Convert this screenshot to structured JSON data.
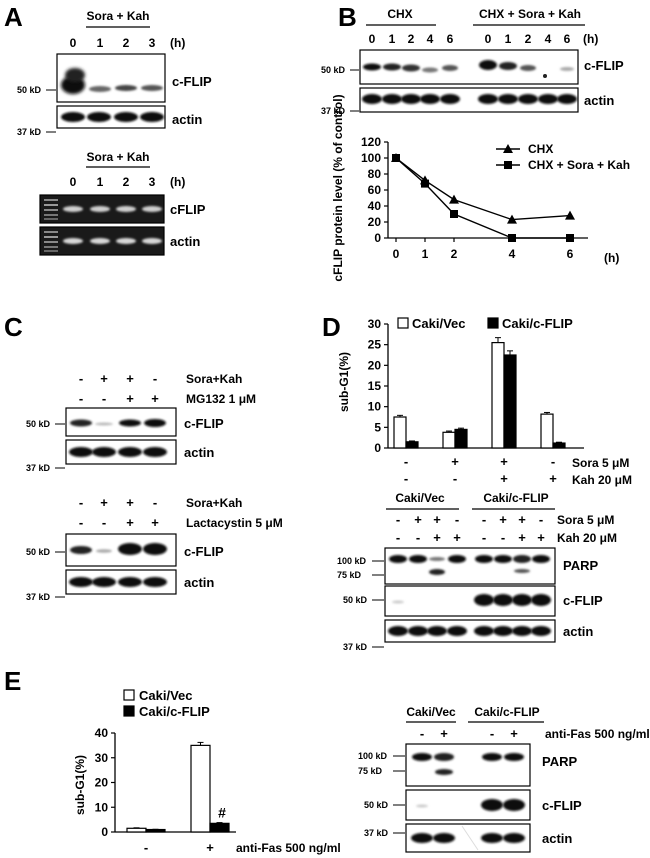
{
  "panels": [
    "A",
    "B",
    "C",
    "D",
    "E"
  ],
  "panelA": {
    "treatment": "Sora + Kah",
    "times": [
      "0",
      "1",
      "2",
      "3"
    ],
    "unit": "(h)",
    "markers": [
      "50 kD",
      "37 kD"
    ],
    "blot_labels": [
      "c-FLIP",
      "actin"
    ],
    "rt_labels": [
      "cFLIP",
      "actin"
    ]
  },
  "panelB": {
    "groups": [
      "CHX",
      "CHX + Sora + Kah"
    ],
    "times": [
      "0",
      "1",
      "2",
      "4",
      "6"
    ],
    "unit": "(h)",
    "markers": [
      "50 kD",
      "37 kD"
    ],
    "blot_labels": [
      "c-FLIP",
      "actin"
    ]
  },
  "panelC": {
    "top": {
      "rows": [
        {
          "label": "Sora+Kah",
          "signs": [
            "-",
            "+",
            "+",
            "-"
          ]
        },
        {
          "label": "MG132 1 μM",
          "signs": [
            "-",
            "-",
            "+",
            "+"
          ]
        }
      ]
    },
    "bottom": {
      "rows": [
        {
          "label": "Sora+Kah",
          "signs": [
            "-",
            "+",
            "+",
            "-"
          ]
        },
        {
          "label": "Lactacystin 5 μM",
          "signs": [
            "-",
            "-",
            "+",
            "+"
          ]
        }
      ]
    },
    "markers": [
      "50 kD",
      "37 kD"
    ],
    "blot_labels": [
      "c-FLIP",
      "actin"
    ]
  },
  "panelD": {
    "blot": {
      "groups": [
        "Caki/Vec",
        "Caki/c-FLIP"
      ],
      "rows": [
        {
          "label": "Sora 5 μM",
          "signs": [
            "-",
            "+",
            "+",
            "-",
            "-",
            "+",
            "+",
            "-"
          ]
        },
        {
          "label": "Kah 20 μM",
          "signs": [
            "-",
            "-",
            "+",
            "+",
            "-",
            "-",
            "+",
            "+"
          ]
        }
      ],
      "markers": [
        "100 kD",
        "75 kD",
        "50 kD",
        "37 kD"
      ],
      "blot_labels": [
        "PARP",
        "c-FLIP",
        "actin"
      ]
    }
  },
  "panelE": {
    "blot": {
      "groups": [
        "Caki/Vec",
        "Caki/c-FLIP"
      ],
      "row": {
        "label": "anti-Fas 500 ng/ml",
        "signs": [
          "-",
          "+",
          "-",
          "+"
        ]
      },
      "markers": [
        "100 kD",
        "75 kD",
        "50 kD",
        "37 kD"
      ],
      "blot_labels": [
        "PARP",
        "c-FLIP",
        "actin"
      ]
    }
  },
  "chart_data": [
    {
      "id": "B",
      "type": "line",
      "ylabel": "cFLIP protein level (% of control)",
      "x": [
        0,
        1,
        2,
        4,
        6
      ],
      "x_unit": "(h)",
      "yticks": [
        0,
        20,
        40,
        60,
        80,
        100,
        120
      ],
      "ylim": [
        0,
        120
      ],
      "series": [
        {
          "name": "CHX",
          "marker": "triangle",
          "values": [
            100,
            72,
            48,
            23,
            28
          ]
        },
        {
          "name": "CHX + Sora + Kah",
          "marker": "square",
          "values": [
            100,
            68,
            30,
            0,
            0
          ]
        }
      ],
      "legend": "top-right"
    },
    {
      "id": "D",
      "type": "bar",
      "ylabel": "sub-G1(%)",
      "ylim": [
        0,
        30
      ],
      "yticks": [
        0,
        5,
        10,
        15,
        20,
        25,
        30
      ],
      "rows": [
        {
          "label": "Sora 5 μM",
          "signs": [
            "-",
            "+",
            "+",
            "-"
          ]
        },
        {
          "label": "Kah 20 μM",
          "signs": [
            "-",
            "-",
            "+",
            "+"
          ]
        }
      ],
      "series": [
        {
          "name": "Caki/Vec",
          "color": "#ffffff",
          "values": [
            7.5,
            3.8,
            25.5,
            8.2
          ],
          "errors": [
            0.4,
            0.3,
            1.2,
            0.4
          ]
        },
        {
          "name": "Caki/c-FLIP",
          "color": "#000000",
          "values": [
            1.5,
            4.5,
            22.5,
            1.2
          ],
          "errors": [
            0.2,
            0.3,
            1.0,
            0.2
          ]
        }
      ],
      "legend": "top"
    },
    {
      "id": "E",
      "type": "bar",
      "ylabel": "sub-G1(%)",
      "ylim": [
        0,
        40
      ],
      "yticks": [
        0,
        10,
        20,
        30,
        40
      ],
      "categories": [
        "-",
        "+"
      ],
      "xlabel": "anti-Fas 500 ng/ml",
      "series": [
        {
          "name": "Caki/Vec",
          "color": "#ffffff",
          "values": [
            1.5,
            35
          ],
          "errors": [
            0.2,
            1.2
          ]
        },
        {
          "name": "Caki/c-FLIP",
          "color": "#000000",
          "values": [
            1.0,
            3.5
          ],
          "errors": [
            0.1,
            0.3
          ]
        }
      ],
      "annotations": [
        "#"
      ],
      "legend": "top-left"
    }
  ]
}
